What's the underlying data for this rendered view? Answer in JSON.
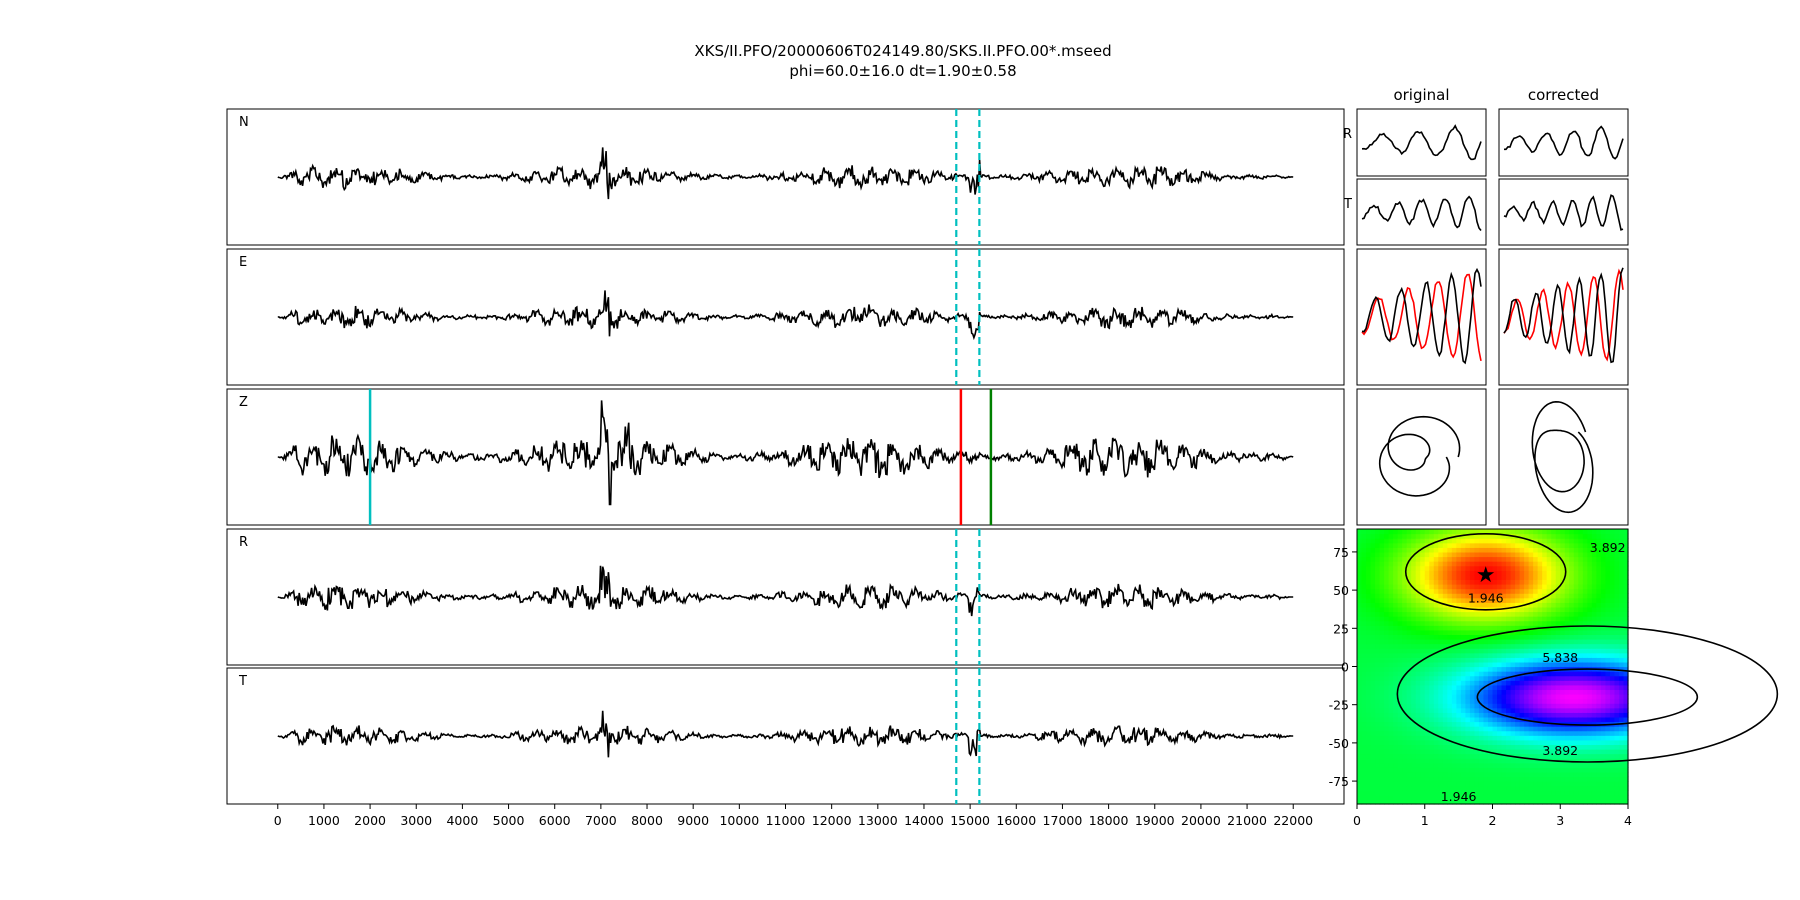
{
  "title": {
    "line1": "XKS/II.PFO/20000606T024149.80/SKS.II.PFO.00*.mseed",
    "line2": "phi=60.0±16.0 dt=1.90±0.58"
  },
  "chart_data": [
    {
      "type": "line",
      "panel": "waveforms",
      "channels": [
        "N",
        "E",
        "Z",
        "R",
        "T"
      ],
      "xlim": [
        -1100,
        23100
      ],
      "xticks": [
        0,
        1000,
        2000,
        3000,
        4000,
        5000,
        6000,
        7000,
        8000,
        9000,
        10000,
        11000,
        12000,
        13000,
        14000,
        15000,
        16000,
        17000,
        18000,
        19000,
        20000,
        21000,
        22000
      ],
      "trace_range": [
        0,
        22000
      ],
      "window_markers": [
        14700,
        15200
      ],
      "z_markers": [
        {
          "x": 2000,
          "color": "#00bfbf"
        },
        {
          "x": 14800,
          "color": "#ff0000"
        },
        {
          "x": 15450,
          "color": "#008000"
        }
      ]
    },
    {
      "type": "line",
      "panel": "particle-motion",
      "column_titles": [
        "original",
        "corrected"
      ],
      "row_labels": [
        "R",
        "T"
      ],
      "series_colors": [
        "#000000",
        "#ff0000"
      ]
    },
    {
      "type": "heatmap",
      "panel": "error-surface",
      "xlim": [
        0,
        4
      ],
      "ylim": [
        -90,
        90
      ],
      "xticks": [
        0,
        1,
        2,
        3,
        4
      ],
      "yticks": [
        75,
        50,
        25,
        0,
        -25,
        -50,
        -75
      ],
      "best": {
        "dt": 1.9,
        "phi": 60.0
      },
      "contour_labels": [
        "1.946",
        "3.892",
        "5.838",
        "3.892",
        "1.946"
      ],
      "colormap": "hsv"
    }
  ]
}
